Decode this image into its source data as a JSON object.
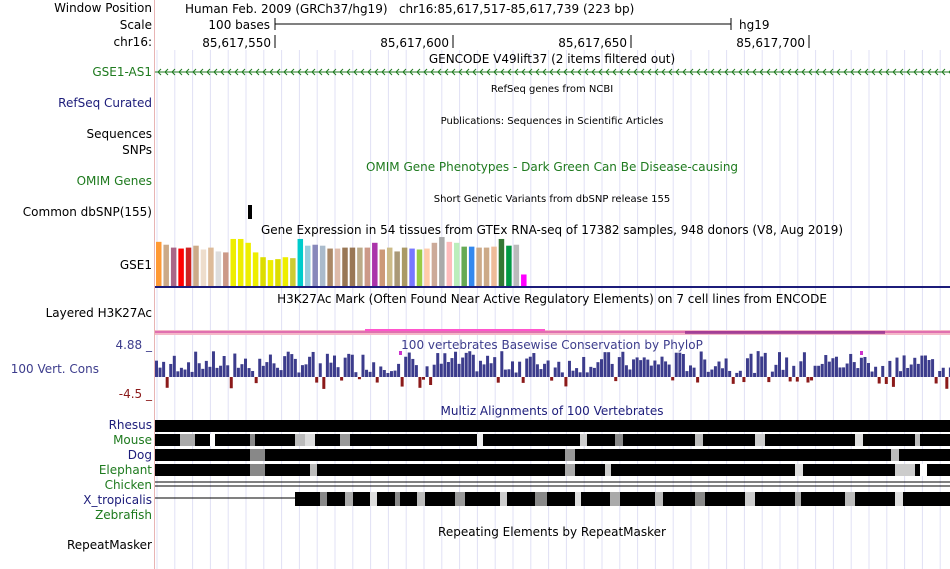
{
  "header": {
    "window_position_label": "Window Position",
    "window_position_value": "Human Feb. 2009 (GRCh37/hg19)   chr16:85,617,517-85,617,739 (223 bp)",
    "scale_label": "Scale",
    "scale_value": "100 bases",
    "assembly": "hg19",
    "chrom_label": "chr16:",
    "ticks": [
      "85,617,550",
      "85,617,600",
      "85,617,650",
      "85,617,700"
    ]
  },
  "tracks": {
    "gencode": {
      "title": "GENCODE V49lift37 (2 items filtered out)",
      "item_label": "GSE1-AS1",
      "color": "#1e7a1e"
    },
    "refseq": {
      "label": "RefSeq Curated",
      "title": "RefSeq genes from NCBI",
      "color": "#1c1c7a"
    },
    "publications": {
      "label_line1": "Sequences",
      "label_line2": "SNPs",
      "title": "Publications: Sequences in Scientific Articles"
    },
    "omim": {
      "label": "OMIM Genes",
      "title": "OMIM Gene Phenotypes - Dark Green Can Be Disease-causing",
      "color": "#1e7a1e"
    },
    "dbsnp": {
      "label": "Common dbSNP(155)",
      "title": "Short Genetic Variants from dbSNP release 155"
    },
    "gtex": {
      "label": "GSE1",
      "title": "Gene Expression in 54 tissues from GTEx RNA-seq of 17382 samples, 948 donors (V8, Aug 2019)"
    },
    "h3k27ac": {
      "label": "Layered H3K27Ac",
      "title": "H3K27Ac Mark (Often Found Near Active Regulatory Elements) on 7 cell lines from ENCODE"
    },
    "phylop": {
      "label": "100 Vert. Cons",
      "max": "4.88 _",
      "min": "-4.5 _",
      "title": "100 vertebrates Basewise Conservation by PhyloP",
      "color": "#3c3c8c"
    },
    "multiz": {
      "title": "Multiz Alignments of 100 Vertebrates",
      "species": [
        {
          "name": "Rhesus",
          "color": "#1c1c7a"
        },
        {
          "name": "Mouse",
          "color": "#1e7a1e"
        },
        {
          "name": "Dog",
          "color": "#1c1c7a"
        },
        {
          "name": "Elephant",
          "color": "#1e7a1e"
        },
        {
          "name": "Chicken",
          "color": "#1e7a1e"
        },
        {
          "name": "X_tropicalis",
          "color": "#1c1c7a"
        },
        {
          "name": "Zebrafish",
          "color": "#1e7a1e"
        }
      ]
    },
    "repeatmasker": {
      "label": "RepeatMasker",
      "title": "Repeating Elements by RepeatMasker"
    }
  },
  "gtex_values": [
    0.92,
    0.86,
    0.8,
    0.78,
    0.8,
    0.84,
    0.76,
    0.8,
    0.72,
    0.7,
    0.98,
    0.98,
    0.9,
    0.7,
    0.6,
    0.54,
    0.56,
    0.6,
    0.58,
    0.98,
    0.84,
    0.86,
    0.84,
    0.78,
    0.78,
    0.8,
    0.8,
    0.8,
    0.8,
    0.9,
    0.76,
    0.8,
    0.72,
    0.8,
    0.78,
    0.76,
    0.78,
    0.9,
    1.02,
    0.92,
    0.9,
    0.82,
    0.82,
    0.8,
    0.8,
    0.82,
    0.98,
    0.84,
    0.86,
    0.24
  ],
  "gtex_colors": [
    "#ff9933",
    "#ccaa88",
    "#aa6688",
    "#ff0000",
    "#cc2222",
    "#ccaa88",
    "#eeddcc",
    "#ddbb99",
    "#dddddd",
    "#cc9988",
    "#eeee00",
    "#eeee00",
    "#eeee00",
    "#eeee00",
    "#dddd00",
    "#eeee00",
    "#dddd00",
    "#eeee00",
    "#cccc33",
    "#00cccc",
    "#99ccdd",
    "#8888bb",
    "#aabbcc",
    "#aa8866",
    "#ddbbaa",
    "#997755",
    "#997755",
    "#bbaa88",
    "#cc9988",
    "#aa33aa",
    "#cc9977",
    "#ccbb88",
    "#aa9977",
    "#aa9966",
    "#7777ff",
    "#99cc44",
    "#ffccaa",
    "#ccaa99",
    "#aaaaaa",
    "#ffbbbb",
    "#bbeebb",
    "#66aa55",
    "#3388ee",
    "#ccaa88",
    "#ccaa88",
    "#eebb99",
    "#337733",
    "#009944",
    "#bbbbbb",
    "#ff00ff"
  ]
}
